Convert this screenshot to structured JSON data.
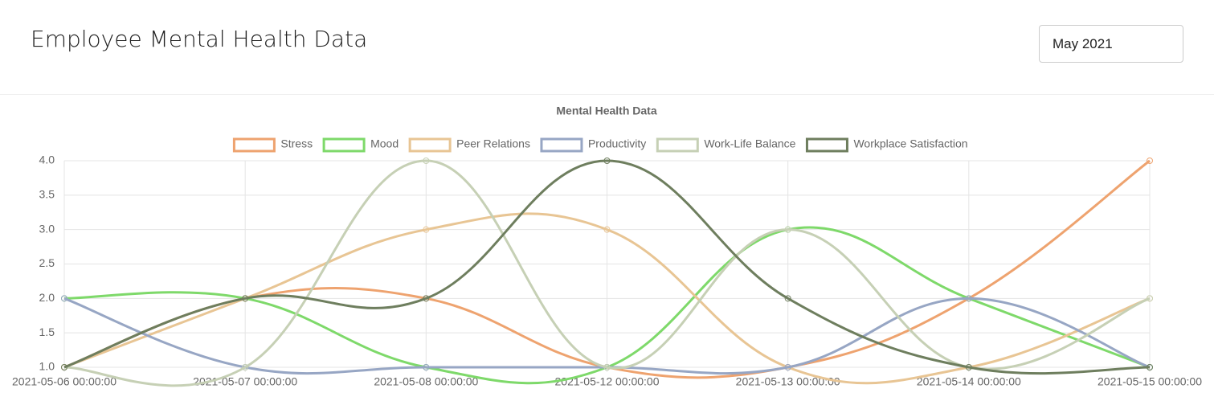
{
  "header": {
    "title": "Employee Mental Health Data",
    "month_selector": "May 2021"
  },
  "chart_data": {
    "type": "line",
    "title": "Mental Health Data",
    "categories": [
      "2021-05-06 00:00:00",
      "2021-05-07 00:00:00",
      "2021-05-08 00:00:00",
      "2021-05-12 00:00:00",
      "2021-05-13 00:00:00",
      "2021-05-14 00:00:00",
      "2021-05-15 00:00:00"
    ],
    "series": [
      {
        "name": "Stress",
        "color": "#eea36f",
        "values": [
          1,
          2,
          2,
          1,
          1,
          2,
          4
        ]
      },
      {
        "name": "Mood",
        "color": "#7ed96a",
        "values": [
          2,
          2,
          1,
          1,
          3,
          2,
          1
        ]
      },
      {
        "name": "Peer Relations",
        "color": "#e8c594",
        "values": [
          1,
          2,
          3,
          3,
          1,
          1,
          2
        ]
      },
      {
        "name": "Productivity",
        "color": "#97a6c4",
        "values": [
          2,
          1,
          1,
          1,
          1,
          2,
          1
        ]
      },
      {
        "name": "Work-Life Balance",
        "color": "#c6d0b5",
        "values": [
          1,
          1,
          4,
          1,
          3,
          1,
          2
        ]
      },
      {
        "name": "Workplace Satisfaction",
        "color": "#6e7e5e",
        "values": [
          1,
          2,
          2,
          4,
          2,
          1,
          1
        ]
      }
    ],
    "ylim": [
      1,
      4
    ],
    "yticks": [
      {
        "value": 1,
        "label": "1.0"
      },
      1.5,
      {
        "value": 2,
        "label": "2.0"
      },
      2.5,
      {
        "value": 3,
        "label": "3.0"
      },
      3.5,
      {
        "value": 4,
        "label": "4.0"
      }
    ],
    "grid": true,
    "legend": "top"
  }
}
